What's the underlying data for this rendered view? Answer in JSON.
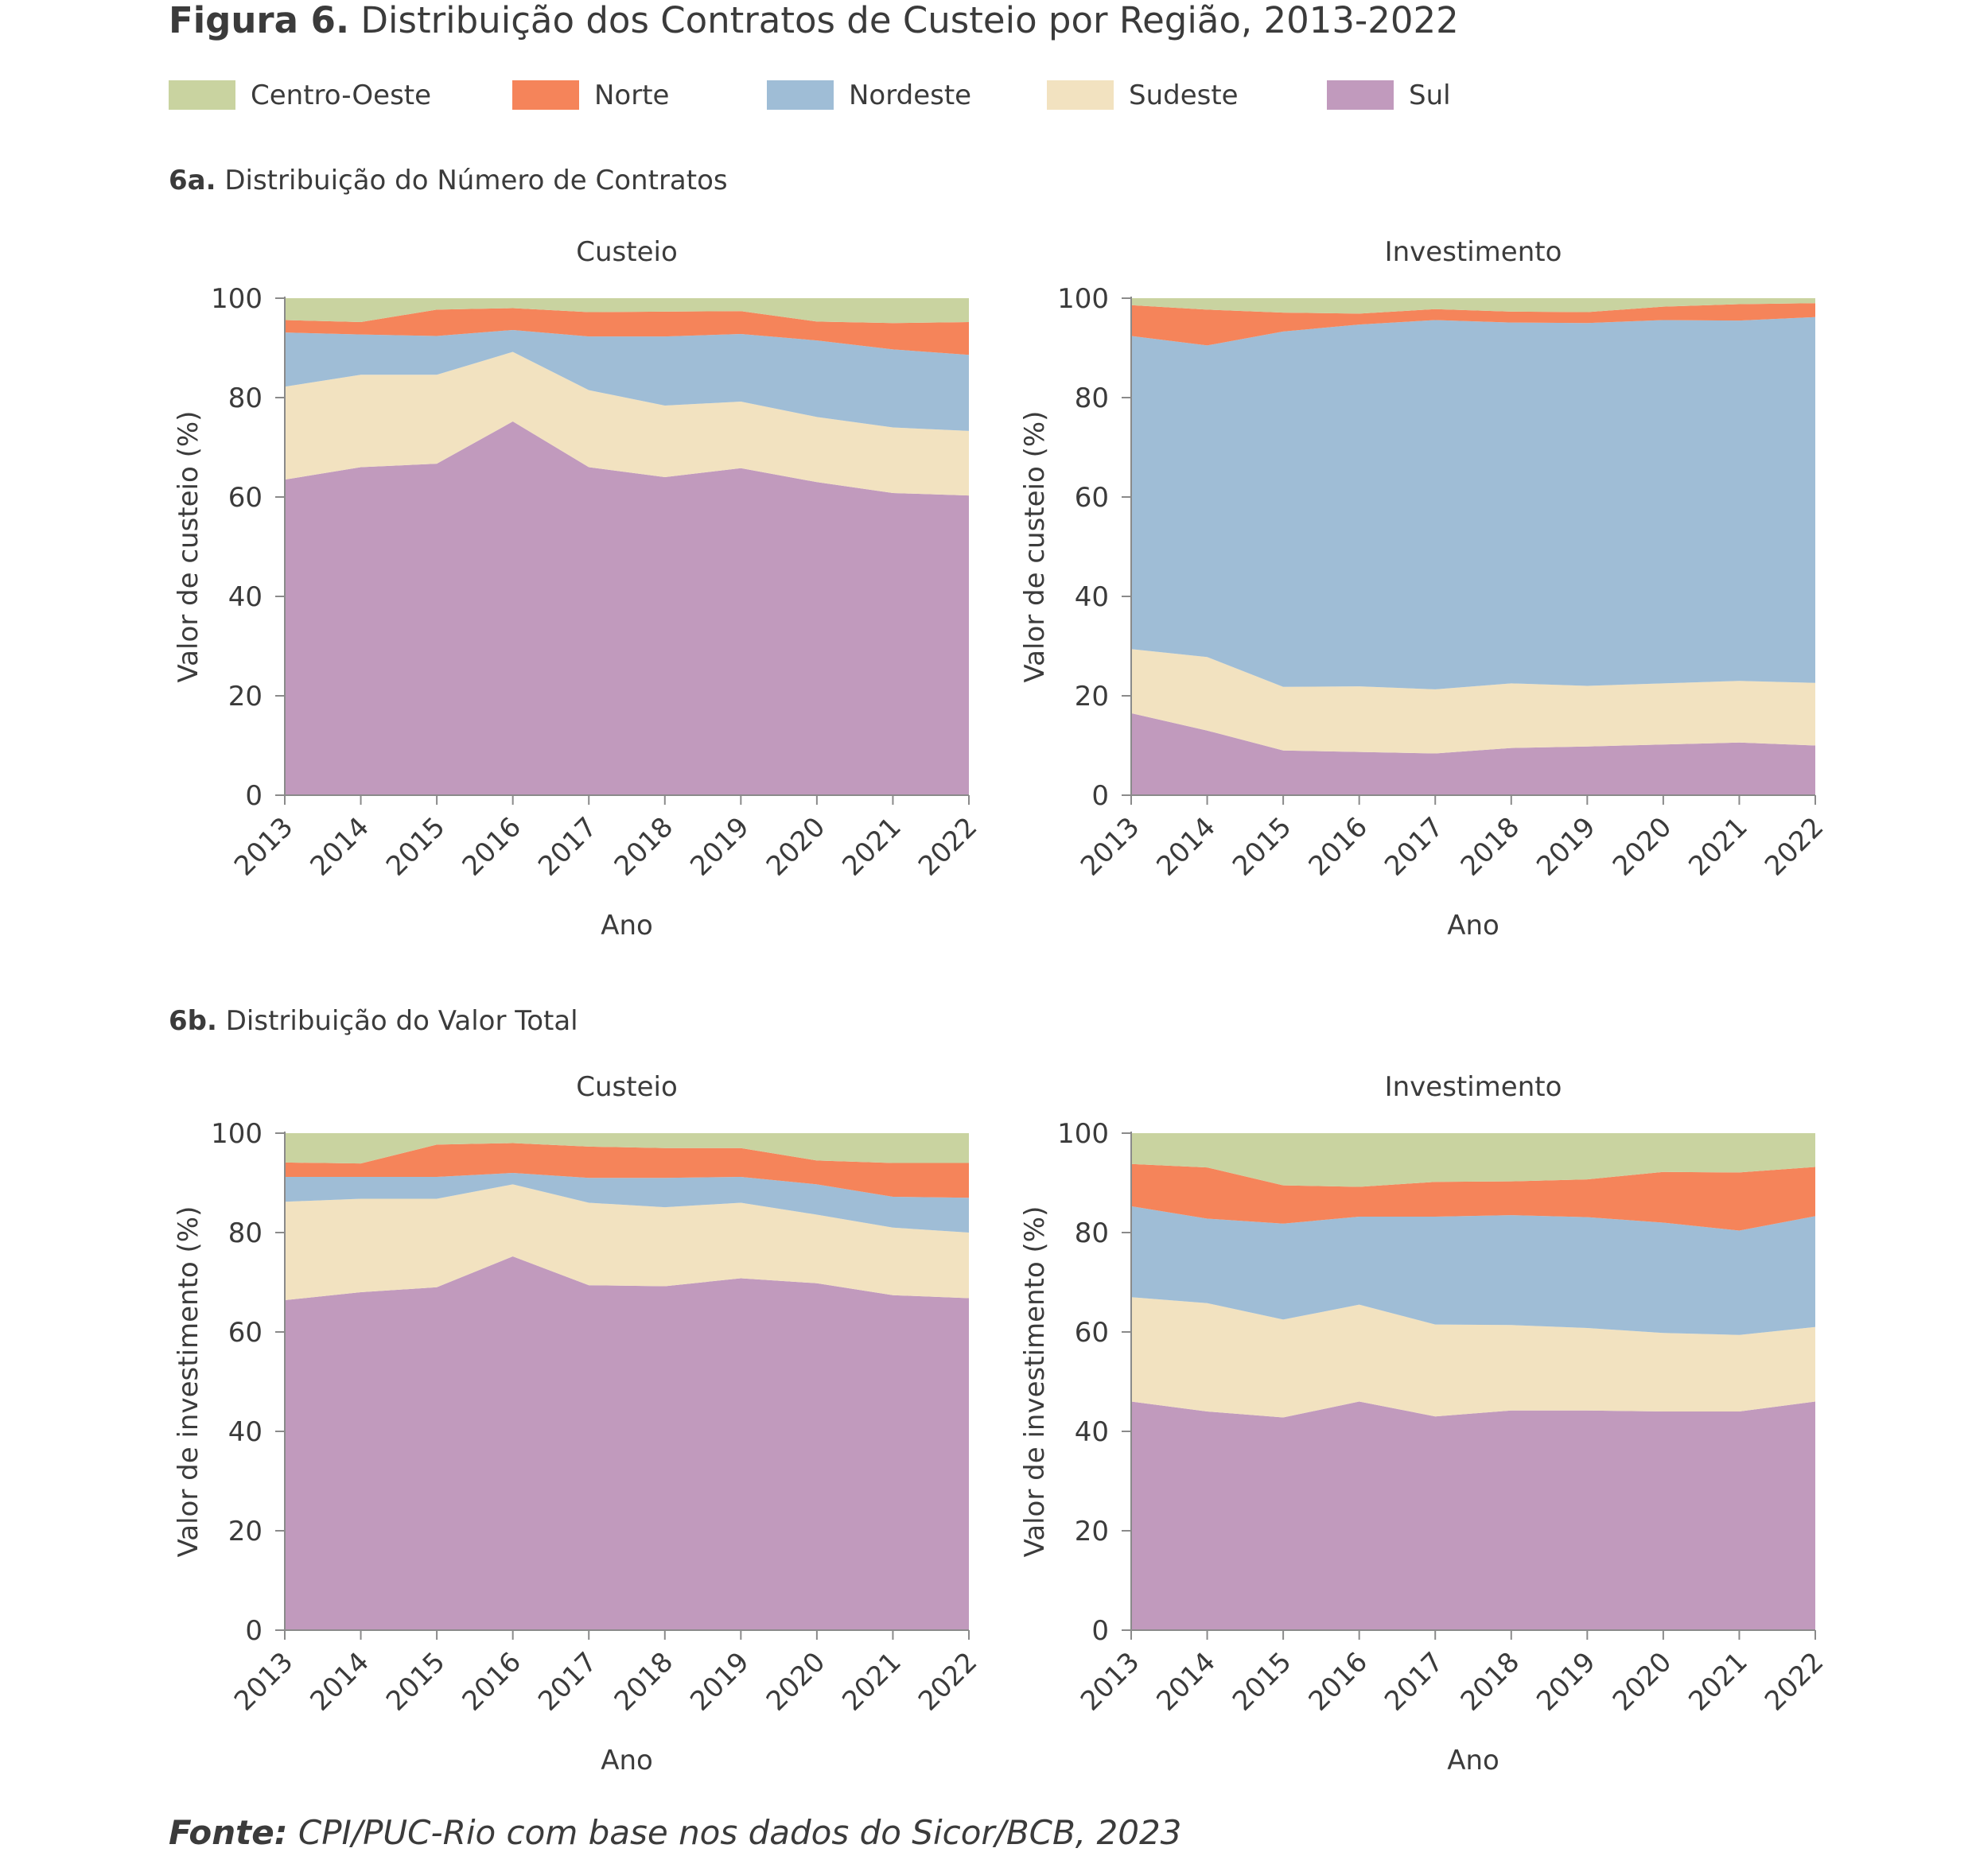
{
  "figure": {
    "label": "Figura 6.",
    "title": "Distribuição dos Contratos de Custeio por Região, 2013-2022"
  },
  "legend": [
    {
      "name": "Centro-Oeste",
      "color": "#c9d3a0"
    },
    {
      "name": "Norte",
      "color": "#f5845a"
    },
    {
      "name": "Nordeste",
      "color": "#9fbdd6"
    },
    {
      "name": "Sudeste",
      "color": "#f2e2c0"
    },
    {
      "name": "Sul",
      "color": "#c19abd"
    }
  ],
  "sections": [
    {
      "label": "6a.",
      "title": "Distribuição do Número de Contratos"
    },
    {
      "label": "6b.",
      "title": "Distribuição do Valor Total"
    }
  ],
  "source": {
    "label": "Fonte:",
    "text": "CPI/PUC-Rio com base nos dados do Sicor/BCB, 2023"
  },
  "chart_data": [
    {
      "type": "area",
      "stacked": true,
      "title": "Custeio",
      "xlabel": "Ano",
      "ylabel": "Valor de custeio (%)",
      "ylim": [
        0,
        100
      ],
      "yticks": [
        0,
        20,
        40,
        60,
        80,
        100
      ],
      "x": [
        "2013",
        "2014",
        "2015",
        "2016",
        "2017",
        "2018",
        "2019",
        "2020",
        "2021",
        "2022"
      ],
      "series": [
        {
          "name": "Sul",
          "values": [
            63.5,
            66,
            66.7,
            75.2,
            66,
            64,
            65.8,
            63,
            60.8,
            60.3
          ]
        },
        {
          "name": "Sudeste",
          "values": [
            18.7,
            18.6,
            17.9,
            14,
            15.5,
            14.4,
            13.4,
            13.1,
            13.2,
            13
          ]
        },
        {
          "name": "Nordeste",
          "values": [
            10.9,
            8.1,
            7.8,
            4.4,
            10.8,
            13.9,
            13.6,
            15.4,
            15.7,
            15.3
          ]
        },
        {
          "name": "Norte",
          "values": [
            2.5,
            2.5,
            5.3,
            4.4,
            4.9,
            5,
            4.6,
            3.8,
            5.3,
            6.6
          ]
        },
        {
          "name": "Centro-Oeste",
          "values": [
            4.4,
            4.8,
            2.3,
            2,
            2.8,
            2.7,
            2.6,
            4.7,
            5,
            4.8
          ]
        }
      ]
    },
    {
      "type": "area",
      "stacked": true,
      "title": "Investimento",
      "xlabel": "Ano",
      "ylabel": "Valor de custeio (%)",
      "ylim": [
        0,
        100
      ],
      "yticks": [
        0,
        20,
        40,
        60,
        80,
        100
      ],
      "x": [
        "2013",
        "2014",
        "2015",
        "2016",
        "2017",
        "2018",
        "2019",
        "2020",
        "2021",
        "2022"
      ],
      "series": [
        {
          "name": "Sul",
          "values": [
            16.5,
            13,
            9,
            8.7,
            8.4,
            9.5,
            9.8,
            10.2,
            10.6,
            10
          ]
        },
        {
          "name": "Sudeste",
          "values": [
            12.9,
            14.8,
            12.8,
            13.2,
            12.9,
            13,
            12.2,
            12.3,
            12.4,
            12.6
          ]
        },
        {
          "name": "Nordeste",
          "values": [
            63,
            62.7,
            71.5,
            72.8,
            74.3,
            72.6,
            73,
            73.1,
            72.5,
            73.6
          ]
        },
        {
          "name": "Norte",
          "values": [
            6.2,
            7.2,
            3.8,
            2.2,
            2.2,
            2.2,
            2.2,
            2.7,
            3.3,
            2.8
          ]
        },
        {
          "name": "Centro-Oeste",
          "values": [
            1.4,
            2.3,
            2.9,
            3.1,
            2.2,
            2.7,
            2.8,
            1.7,
            1.2,
            1
          ]
        }
      ]
    },
    {
      "type": "area",
      "stacked": true,
      "title": "Custeio",
      "xlabel": "Ano",
      "ylabel": "Valor de investimento (%)",
      "ylim": [
        0,
        100
      ],
      "yticks": [
        0,
        20,
        40,
        60,
        80,
        100
      ],
      "x": [
        "2013",
        "2014",
        "2015",
        "2016",
        "2017",
        "2018",
        "2019",
        "2020",
        "2021",
        "2022"
      ],
      "series": [
        {
          "name": "Sul",
          "values": [
            66.4,
            68,
            69,
            75.2,
            69.4,
            69.2,
            70.8,
            69.8,
            67.4,
            66.8
          ]
        },
        {
          "name": "Sudeste",
          "values": [
            19.8,
            18.8,
            17.8,
            14.5,
            16.6,
            15.9,
            15.2,
            13.8,
            13.6,
            13.2
          ]
        },
        {
          "name": "Nordeste",
          "values": [
            5,
            4.4,
            4.4,
            2.3,
            5,
            5.9,
            5.2,
            6.1,
            6.2,
            7
          ]
        },
        {
          "name": "Norte",
          "values": [
            2.9,
            2.7,
            6.5,
            6,
            6.3,
            6,
            5.8,
            4.8,
            6.8,
            7
          ]
        },
        {
          "name": "Centro-Oeste",
          "values": [
            5.9,
            6.1,
            2.3,
            2,
            2.7,
            3,
            3,
            5.5,
            6,
            6
          ]
        }
      ]
    },
    {
      "type": "area",
      "stacked": true,
      "title": "Investimento",
      "xlabel": "Ano",
      "ylabel": "Valor de investimento (%)",
      "ylim": [
        0,
        100
      ],
      "yticks": [
        0,
        20,
        40,
        60,
        80,
        100
      ],
      "x": [
        "2013",
        "2014",
        "2015",
        "2016",
        "2017",
        "2018",
        "2019",
        "2020",
        "2021",
        "2022"
      ],
      "series": [
        {
          "name": "Sul",
          "values": [
            46,
            44,
            42.8,
            46,
            43,
            44.2,
            44.2,
            44,
            44,
            46
          ]
        },
        {
          "name": "Sudeste",
          "values": [
            21,
            21.8,
            19.7,
            19.5,
            18.5,
            17.2,
            16.6,
            15.8,
            15.4,
            15
          ]
        },
        {
          "name": "Nordeste",
          "values": [
            18.3,
            17,
            19.3,
            17.7,
            21.7,
            22.1,
            22.3,
            22.2,
            21,
            22.3
          ]
        },
        {
          "name": "Norte",
          "values": [
            8.5,
            10.3,
            7.7,
            6,
            7,
            6.8,
            7.6,
            10.2,
            11.7,
            9.9
          ]
        },
        {
          "name": "Centro-Oeste",
          "values": [
            6.2,
            6.9,
            10.5,
            10.8,
            9.8,
            9.7,
            9.3,
            7.8,
            7.9,
            6.8
          ]
        }
      ]
    }
  ]
}
